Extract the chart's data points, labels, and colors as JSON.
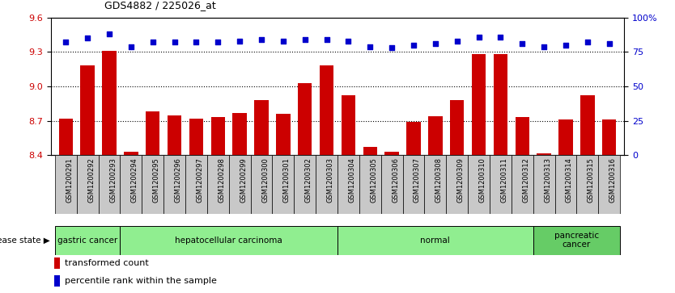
{
  "title": "GDS4882 / 225026_at",
  "categories": [
    "GSM1200291",
    "GSM1200292",
    "GSM1200293",
    "GSM1200294",
    "GSM1200295",
    "GSM1200296",
    "GSM1200297",
    "GSM1200298",
    "GSM1200299",
    "GSM1200300",
    "GSM1200301",
    "GSM1200302",
    "GSM1200303",
    "GSM1200304",
    "GSM1200305",
    "GSM1200306",
    "GSM1200307",
    "GSM1200308",
    "GSM1200309",
    "GSM1200310",
    "GSM1200311",
    "GSM1200312",
    "GSM1200313",
    "GSM1200314",
    "GSM1200315",
    "GSM1200316"
  ],
  "bar_values": [
    8.72,
    9.18,
    9.31,
    8.43,
    8.78,
    8.75,
    8.72,
    8.73,
    8.77,
    8.88,
    8.76,
    9.03,
    9.18,
    8.92,
    8.47,
    8.43,
    8.69,
    8.74,
    8.88,
    9.28,
    9.28,
    8.73,
    8.42,
    8.71,
    8.92,
    8.71
  ],
  "percentile_values": [
    82,
    85,
    88,
    79,
    82,
    82,
    82,
    82,
    83,
    84,
    83,
    84,
    84,
    83,
    79,
    78,
    80,
    81,
    83,
    86,
    86,
    81,
    79,
    80,
    82,
    81
  ],
  "bar_color": "#cc0000",
  "dot_color": "#0000cc",
  "ylim_left": [
    8.4,
    9.6
  ],
  "ylim_right": [
    0,
    100
  ],
  "yticks_left": [
    8.4,
    8.7,
    9.0,
    9.3,
    9.6
  ],
  "yticks_right": [
    0,
    25,
    50,
    75,
    100
  ],
  "ytick_labels_right": [
    "0",
    "25",
    "50",
    "75",
    "100%"
  ],
  "grid_lines": [
    8.7,
    9.0,
    9.3
  ],
  "disease_groups": [
    {
      "label": "gastric cancer",
      "start": 0,
      "end": 3,
      "color": "#90ee90"
    },
    {
      "label": "hepatocellular carcinoma",
      "start": 3,
      "end": 13,
      "color": "#90ee90"
    },
    {
      "label": "normal",
      "start": 13,
      "end": 22,
      "color": "#90ee90"
    },
    {
      "label": "pancreatic\ncancer",
      "start": 22,
      "end": 26,
      "color": "#66cc66"
    }
  ],
  "disease_state_label": "disease state",
  "legend_items": [
    {
      "label": "transformed count",
      "color": "#cc0000"
    },
    {
      "label": "percentile rank within the sample",
      "color": "#0000cc"
    }
  ],
  "bg_color": "#ffffff",
  "plot_bg_color": "#ffffff",
  "tick_label_area_color": "#c8c8c8"
}
